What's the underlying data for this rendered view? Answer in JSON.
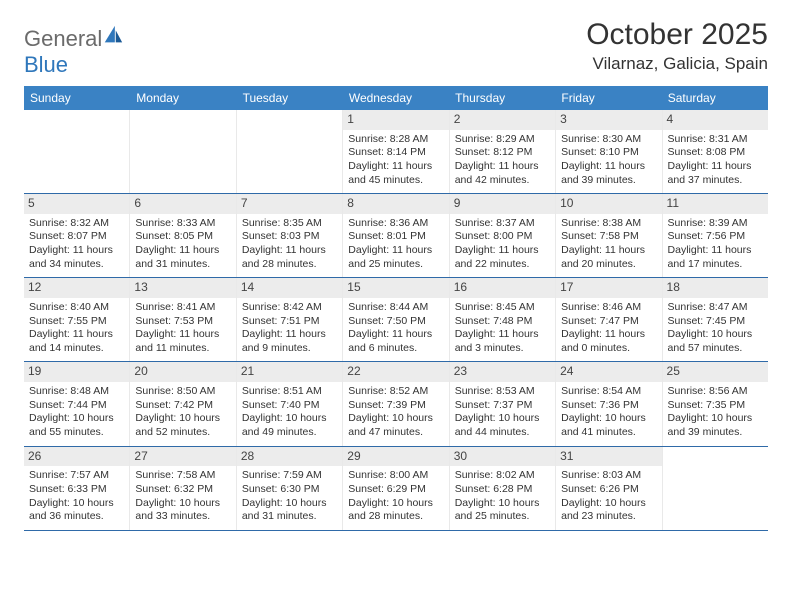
{
  "brand": {
    "part1": "General",
    "part2": "Blue"
  },
  "title": "October 2025",
  "location": "Vilarnaz, Galicia, Spain",
  "colors": {
    "header_bg": "#3a82c4",
    "header_text": "#ffffff",
    "daynum_bg": "#ececec",
    "week_border": "#2f6aa8",
    "brand_gray": "#6b6b6b",
    "brand_blue": "#2f77bb"
  },
  "day_names": [
    "Sunday",
    "Monday",
    "Tuesday",
    "Wednesday",
    "Thursday",
    "Friday",
    "Saturday"
  ],
  "weeks": [
    [
      null,
      null,
      null,
      {
        "n": "1",
        "sr": "8:28 AM",
        "ss": "8:14 PM",
        "dl": "11 hours and 45 minutes."
      },
      {
        "n": "2",
        "sr": "8:29 AM",
        "ss": "8:12 PM",
        "dl": "11 hours and 42 minutes."
      },
      {
        "n": "3",
        "sr": "8:30 AM",
        "ss": "8:10 PM",
        "dl": "11 hours and 39 minutes."
      },
      {
        "n": "4",
        "sr": "8:31 AM",
        "ss": "8:08 PM",
        "dl": "11 hours and 37 minutes."
      }
    ],
    [
      {
        "n": "5",
        "sr": "8:32 AM",
        "ss": "8:07 PM",
        "dl": "11 hours and 34 minutes."
      },
      {
        "n": "6",
        "sr": "8:33 AM",
        "ss": "8:05 PM",
        "dl": "11 hours and 31 minutes."
      },
      {
        "n": "7",
        "sr": "8:35 AM",
        "ss": "8:03 PM",
        "dl": "11 hours and 28 minutes."
      },
      {
        "n": "8",
        "sr": "8:36 AM",
        "ss": "8:01 PM",
        "dl": "11 hours and 25 minutes."
      },
      {
        "n": "9",
        "sr": "8:37 AM",
        "ss": "8:00 PM",
        "dl": "11 hours and 22 minutes."
      },
      {
        "n": "10",
        "sr": "8:38 AM",
        "ss": "7:58 PM",
        "dl": "11 hours and 20 minutes."
      },
      {
        "n": "11",
        "sr": "8:39 AM",
        "ss": "7:56 PM",
        "dl": "11 hours and 17 minutes."
      }
    ],
    [
      {
        "n": "12",
        "sr": "8:40 AM",
        "ss": "7:55 PM",
        "dl": "11 hours and 14 minutes."
      },
      {
        "n": "13",
        "sr": "8:41 AM",
        "ss": "7:53 PM",
        "dl": "11 hours and 11 minutes."
      },
      {
        "n": "14",
        "sr": "8:42 AM",
        "ss": "7:51 PM",
        "dl": "11 hours and 9 minutes."
      },
      {
        "n": "15",
        "sr": "8:44 AM",
        "ss": "7:50 PM",
        "dl": "11 hours and 6 minutes."
      },
      {
        "n": "16",
        "sr": "8:45 AM",
        "ss": "7:48 PM",
        "dl": "11 hours and 3 minutes."
      },
      {
        "n": "17",
        "sr": "8:46 AM",
        "ss": "7:47 PM",
        "dl": "11 hours and 0 minutes."
      },
      {
        "n": "18",
        "sr": "8:47 AM",
        "ss": "7:45 PM",
        "dl": "10 hours and 57 minutes."
      }
    ],
    [
      {
        "n": "19",
        "sr": "8:48 AM",
        "ss": "7:44 PM",
        "dl": "10 hours and 55 minutes."
      },
      {
        "n": "20",
        "sr": "8:50 AM",
        "ss": "7:42 PM",
        "dl": "10 hours and 52 minutes."
      },
      {
        "n": "21",
        "sr": "8:51 AM",
        "ss": "7:40 PM",
        "dl": "10 hours and 49 minutes."
      },
      {
        "n": "22",
        "sr": "8:52 AM",
        "ss": "7:39 PM",
        "dl": "10 hours and 47 minutes."
      },
      {
        "n": "23",
        "sr": "8:53 AM",
        "ss": "7:37 PM",
        "dl": "10 hours and 44 minutes."
      },
      {
        "n": "24",
        "sr": "8:54 AM",
        "ss": "7:36 PM",
        "dl": "10 hours and 41 minutes."
      },
      {
        "n": "25",
        "sr": "8:56 AM",
        "ss": "7:35 PM",
        "dl": "10 hours and 39 minutes."
      }
    ],
    [
      {
        "n": "26",
        "sr": "7:57 AM",
        "ss": "6:33 PM",
        "dl": "10 hours and 36 minutes."
      },
      {
        "n": "27",
        "sr": "7:58 AM",
        "ss": "6:32 PM",
        "dl": "10 hours and 33 minutes."
      },
      {
        "n": "28",
        "sr": "7:59 AM",
        "ss": "6:30 PM",
        "dl": "10 hours and 31 minutes."
      },
      {
        "n": "29",
        "sr": "8:00 AM",
        "ss": "6:29 PM",
        "dl": "10 hours and 28 minutes."
      },
      {
        "n": "30",
        "sr": "8:02 AM",
        "ss": "6:28 PM",
        "dl": "10 hours and 25 minutes."
      },
      {
        "n": "31",
        "sr": "8:03 AM",
        "ss": "6:26 PM",
        "dl": "10 hours and 23 minutes."
      },
      null
    ]
  ],
  "labels": {
    "sunrise": "Sunrise:",
    "sunset": "Sunset:",
    "daylight": "Daylight:"
  }
}
